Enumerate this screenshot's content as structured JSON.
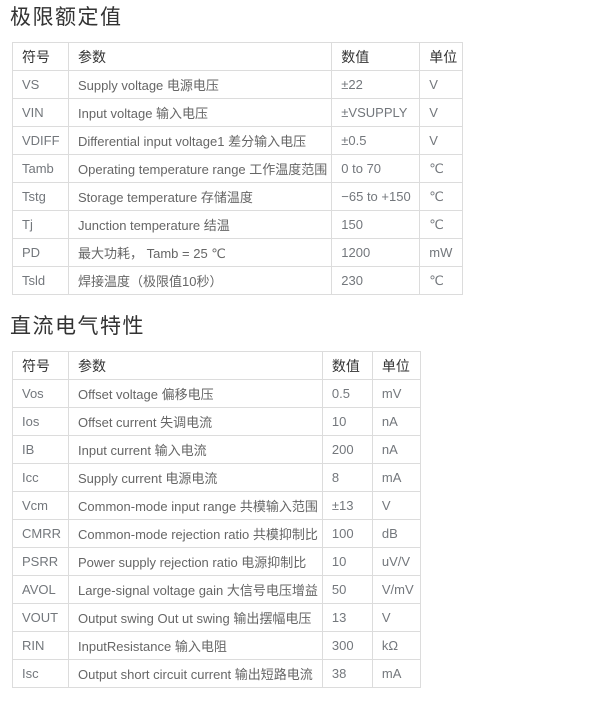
{
  "colors": {
    "background": "#ffffff",
    "title_text": "#333333",
    "header_text": "#333333",
    "body_text": "#666666",
    "border": "#dcdcdc"
  },
  "sections": [
    {
      "title": "极限额定值",
      "columns": [
        "符号",
        "参数",
        "数值",
        "单位"
      ],
      "rows": [
        {
          "symbol": "VS",
          "parameter": "Supply voltage 电源电压",
          "value": "±22",
          "unit": "V"
        },
        {
          "symbol": "VIN",
          "parameter": "Input voltage 输入电压",
          "value": "±VSUPPLY",
          "unit": "V"
        },
        {
          "symbol": "VDIFF",
          "parameter": "Differential input voltage1 差分输入电压",
          "value": "±0.5",
          "unit": "V"
        },
        {
          "symbol": "Tamb",
          "parameter": "Operating temperature range 工作温度范围",
          "value": "0 to 70",
          "unit": "℃"
        },
        {
          "symbol": "Tstg",
          "parameter": "Storage temperature 存储温度",
          "value": "−65 to +150",
          "unit": "℃"
        },
        {
          "symbol": "Tj",
          "parameter": "Junction temperature 结温",
          "value": "150",
          "unit": "℃"
        },
        {
          "symbol": "PD",
          "parameter": "最大功耗， Tamb = 25 ℃",
          "value": "1200",
          "unit": "mW"
        },
        {
          "symbol": "Tsld",
          "parameter": "焊接温度（极限值10秒）",
          "value": "230",
          "unit": "℃"
        }
      ]
    },
    {
      "title": "直流电气特性",
      "columns": [
        "符号",
        "参数",
        "数值",
        "单位"
      ],
      "rows": [
        {
          "symbol": "Vos",
          "parameter": "Offset voltage 偏移电压",
          "value": "0.5",
          "unit": "mV"
        },
        {
          "symbol": "Ios",
          "parameter": "Offset current 失调电流",
          "value": "10",
          "unit": "nA"
        },
        {
          "symbol": "IB",
          "parameter": "Input current 输入电流",
          "value": "200",
          "unit": "nA"
        },
        {
          "symbol": "Icc",
          "parameter": "Supply current 电源电流",
          "value": "8",
          "unit": "mA"
        },
        {
          "symbol": "Vcm",
          "parameter": "Common-mode input range 共模输入范围",
          "value": "±13",
          "unit": "V"
        },
        {
          "symbol": "CMRR",
          "parameter": "Common-mode rejection ratio 共模抑制比",
          "value": "100",
          "unit": "dB"
        },
        {
          "symbol": "PSRR",
          "parameter": "Power supply rejection ratio 电源抑制比",
          "value": "10",
          "unit": "uV/V"
        },
        {
          "symbol": "AVOL",
          "parameter": "Large-signal voltage gain 大信号电压增益",
          "value": "50",
          "unit": "V/mV"
        },
        {
          "symbol": "VOUT",
          "parameter": "Output swing Out ut swing 输出摆幅电压",
          "value": "13",
          "unit": "V"
        },
        {
          "symbol": "RIN",
          "parameter": "InputResistance 输入电阻",
          "value": "300",
          "unit": "kΩ"
        },
        {
          "symbol": "Isc",
          "parameter": "Output short circuit current 输出短路电流",
          "value": "38",
          "unit": "mA"
        }
      ]
    }
  ]
}
